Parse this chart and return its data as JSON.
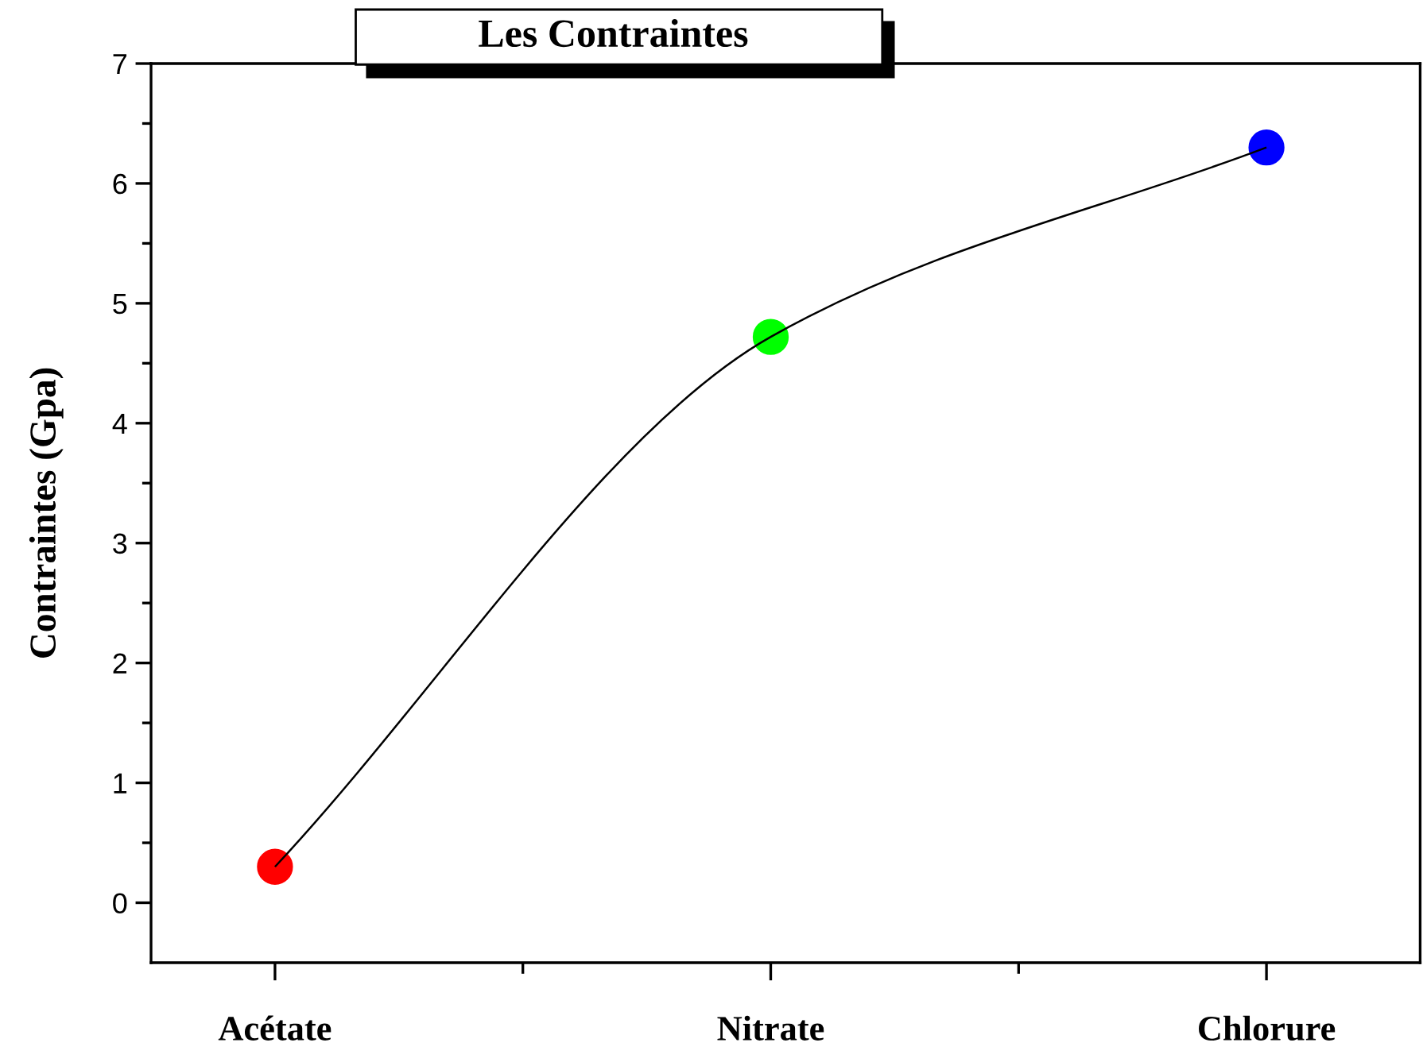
{
  "chart_data": {
    "type": "line",
    "title": "Les Contraintes",
    "ylabel": "Contraintes (Gpa)",
    "categories": [
      "Acétate",
      "Nitrate",
      "Chlorure"
    ],
    "series": [
      {
        "color": "#000000",
        "colors": [
          "#ff0000",
          "#00ff00",
          "#0000ff"
        ],
        "values": [
          0.3,
          4.72,
          6.3
        ],
        "marker": "circle"
      }
    ],
    "ylim": [
      -0.5,
      7
    ],
    "yticks": [
      0,
      1,
      2,
      3,
      4,
      5,
      6,
      7
    ],
    "grid": false,
    "legend": false
  }
}
